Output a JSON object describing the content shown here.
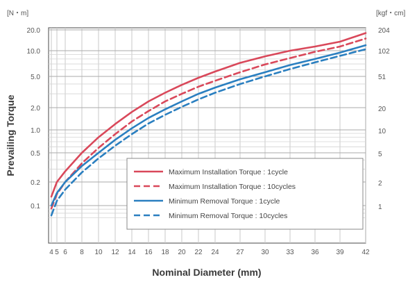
{
  "chart_data": {
    "type": "line",
    "xlabel": "Nominal Diameter (mm)",
    "ylabel": "Prevailing Torque",
    "y_unit_left": "[N・m]",
    "y_unit_right": "[kgf・cm]",
    "y_scale": "log",
    "ylim": [
      0.07,
      20
    ],
    "x_ticks": [
      {
        "label": "4",
        "value": 4
      },
      {
        "label": "4.5",
        "value": 4.5
      },
      {
        "label": "5",
        "value": 5
      },
      {
        "label": "6",
        "value": 6
      },
      {
        "label": "8",
        "value": 8
      },
      {
        "label": "10",
        "value": 10
      },
      {
        "label": "12",
        "value": 12
      },
      {
        "label": "14",
        "value": 14
      },
      {
        "label": "16",
        "value": 16
      },
      {
        "label": "18",
        "value": 18
      },
      {
        "label": "20",
        "value": 20
      },
      {
        "label": "22",
        "value": 22
      },
      {
        "label": "24",
        "value": 24
      },
      {
        "label": "27",
        "value": 27
      },
      {
        "label": "30",
        "value": 30
      },
      {
        "label": "33",
        "value": 33
      },
      {
        "label": "36",
        "value": 36
      },
      {
        "label": "39",
        "value": 39
      },
      {
        "label": "42",
        "value": 42
      }
    ],
    "y_ticks_left": [
      {
        "label": "0.1",
        "value": 0.1
      },
      {
        "label": "0.2",
        "value": 0.2
      },
      {
        "label": "0.5",
        "value": 0.5
      },
      {
        "label": "1.0",
        "value": 1.0
      },
      {
        "label": "2.0",
        "value": 2.0
      },
      {
        "label": "5.0",
        "value": 5.0
      },
      {
        "label": "10.0",
        "value": 10.0
      },
      {
        "label": "20.0",
        "value": 20.0
      }
    ],
    "y_ticks_right": [
      {
        "label": "1",
        "value": 0.098
      },
      {
        "label": "2",
        "value": 0.196
      },
      {
        "label": "5",
        "value": 0.49
      },
      {
        "label": "10",
        "value": 0.98
      },
      {
        "label": "20",
        "value": 1.96
      },
      {
        "label": "51",
        "value": 5.0
      },
      {
        "label": "102",
        "value": 10.0
      },
      {
        "label": "204",
        "value": 20.0
      }
    ],
    "grid": true,
    "legend_position": "bottom-right",
    "series": [
      {
        "name": "Maximum Installation Torque : 1cycle",
        "color": "#d9485a",
        "dash": "solid",
        "x": [
          4,
          5,
          6,
          8,
          10,
          12,
          14,
          16,
          18,
          20,
          22,
          24,
          27,
          30,
          33,
          36,
          39,
          42
        ],
        "y": [
          0.13,
          0.2,
          0.28,
          0.5,
          0.8,
          1.2,
          1.75,
          2.4,
          3.1,
          3.9,
          4.8,
          5.7,
          7.2,
          8.6,
          10.0,
          11.5,
          13.5,
          18.0
        ]
      },
      {
        "name": "Maximum Installation Torque : 10cycles",
        "color": "#d9485a",
        "dash": "dashed",
        "x": [
          4,
          5,
          6,
          8,
          10,
          12,
          14,
          16,
          18,
          20,
          22,
          24,
          27,
          30,
          33,
          36,
          39,
          42
        ],
        "y": [
          0.092,
          0.14,
          0.2,
          0.36,
          0.58,
          0.88,
          1.3,
          1.8,
          2.4,
          3.0,
          3.7,
          4.4,
          5.6,
          6.9,
          8.2,
          9.7,
          11.5,
          15.0
        ]
      },
      {
        "name": "Minimum Removal Torque : 1cycle",
        "color": "#2a7fc0",
        "dash": "solid",
        "x": [
          4,
          5,
          6,
          8,
          10,
          12,
          14,
          16,
          18,
          20,
          22,
          24,
          27,
          30,
          33,
          36,
          39,
          42
        ],
        "y": [
          0.1,
          0.145,
          0.2,
          0.33,
          0.5,
          0.74,
          1.05,
          1.45,
          1.9,
          2.4,
          3.0,
          3.6,
          4.6,
          5.6,
          6.8,
          8.0,
          9.5,
          12.0
        ]
      },
      {
        "name": "Minimum Removal Torque : 10cycles",
        "color": "#2a7fc0",
        "dash": "dashed",
        "x": [
          4,
          5,
          6,
          8,
          10,
          12,
          14,
          16,
          18,
          20,
          22,
          24,
          27,
          30,
          33,
          36,
          39,
          42
        ],
        "y": [
          0.075,
          0.115,
          0.16,
          0.27,
          0.42,
          0.62,
          0.88,
          1.22,
          1.6,
          2.05,
          2.55,
          3.1,
          4.0,
          5.0,
          6.1,
          7.3,
          8.7,
          10.5
        ]
      }
    ]
  }
}
